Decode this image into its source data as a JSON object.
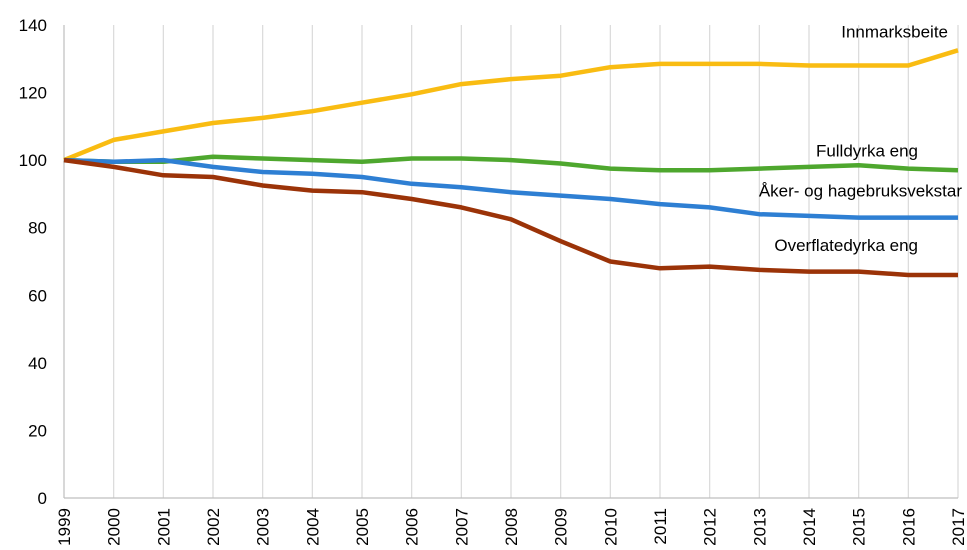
{
  "chart_data": {
    "type": "line",
    "title": "",
    "xlabel": "",
    "ylabel": "",
    "ylim": [
      0,
      140
    ],
    "y_ticks": [
      "0",
      "20",
      "40",
      "60",
      "80",
      "100",
      "120",
      "140"
    ],
    "x": [
      "1999",
      "2000",
      "2001",
      "2002",
      "2003",
      "2004",
      "2005",
      "2006",
      "2007",
      "2008",
      "2009",
      "2010",
      "2011",
      "2012",
      "2013",
      "2014",
      "2015",
      "2016",
      "2017"
    ],
    "grid": "vertical",
    "legend": "inline labels",
    "series": [
      {
        "name": "Innmarksbeite",
        "color": "#F9BC12",
        "values": [
          100,
          106,
          108.5,
          111,
          112.5,
          114.5,
          117,
          119.5,
          122.5,
          124,
          125,
          127.5,
          128.5,
          128.5,
          128.5,
          128,
          128,
          128,
          132.5
        ]
      },
      {
        "name": "Fulldyrka eng",
        "color": "#4EA72E",
        "values": [
          100,
          99.5,
          99.5,
          101,
          100.5,
          100,
          99.5,
          100.5,
          100.5,
          100,
          99,
          97.5,
          97,
          97,
          97.5,
          98,
          98.5,
          97.5,
          97
        ]
      },
      {
        "name": "Åker- og hagebruksvekstar",
        "color": "#2E7FD3",
        "values": [
          100,
          99.5,
          100,
          98,
          96.5,
          96,
          95,
          93,
          92,
          90.5,
          89.5,
          88.5,
          87,
          86,
          84,
          83.5,
          83,
          83,
          83
        ]
      },
      {
        "name": "Overflatedyrka eng",
        "color": "#9B3308",
        "values": [
          100,
          98,
          95.5,
          95,
          92.5,
          91,
          90.5,
          88.5,
          86,
          82.5,
          76,
          70,
          68,
          68.5,
          67.5,
          67,
          67,
          66,
          66
        ]
      }
    ]
  }
}
